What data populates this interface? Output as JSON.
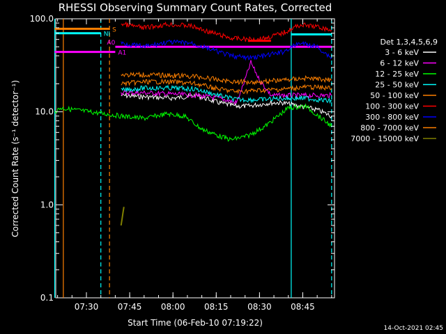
{
  "chart_data": {
    "type": "line",
    "title": "RHESSI Observing Summary Count Rates, Corrected",
    "xlabel": "Start Time (06-Feb-10 07:19:22)",
    "ylabel": "Corrected Count Rate (s⁻¹ detector⁻¹)",
    "ylim": [
      0.1,
      100.0
    ],
    "yscale": "log",
    "xrange_minutes": [
      "07:19:22",
      "08:56:00"
    ],
    "x_ticks": [
      "07:30",
      "07:45",
      "08:00",
      "08:15",
      "08:30",
      "08:45"
    ],
    "y_ticks": [
      "0.1",
      "1.0",
      "10.0",
      "100.0"
    ],
    "legend_title": "Det 1,3,4,5,6,9",
    "legend_placement": "right",
    "grid": false,
    "series": [
      {
        "name": "3 - 6 keV",
        "color": "#ffffff",
        "x": [
          "07:42",
          "07:50",
          "08:00",
          "08:08",
          "08:16",
          "08:22",
          "08:26",
          "08:30",
          "08:34",
          "08:38",
          "08:44",
          "08:50",
          "08:55"
        ],
        "values": [
          15,
          14.5,
          14,
          15,
          12.5,
          11.5,
          11.5,
          12,
          12.5,
          12.5,
          11.5,
          10.5,
          9
        ]
      },
      {
        "name": "6 - 12 keV",
        "color": "#ff00ff",
        "x": [
          "07:42",
          "07:50",
          "08:00",
          "08:08",
          "08:16",
          "08:22",
          "08:24",
          "08:27",
          "08:30",
          "08:34",
          "08:40",
          "08:46",
          "08:55"
        ],
        "values": [
          16,
          16,
          15.5,
          15,
          14,
          12.5,
          18,
          34,
          22,
          15,
          15,
          15,
          15
        ]
      },
      {
        "name": "12 - 25 keV",
        "color": "#00ff00",
        "x": [
          "07:19",
          "07:21",
          "07:42",
          "07:50",
          "07:58",
          "08:04",
          "08:10",
          "08:16",
          "08:20",
          "08:26",
          "08:32",
          "08:40",
          "08:46",
          "08:55"
        ],
        "values": [
          10,
          11,
          9,
          8.5,
          9.5,
          9,
          6.5,
          5.5,
          5,
          5.5,
          7,
          11,
          11.5,
          7
        ]
      },
      {
        "name": "25 - 50 keV",
        "color": "#00ffff",
        "x": [
          "07:42",
          "07:50",
          "08:00",
          "08:08",
          "08:16",
          "08:22",
          "08:30",
          "08:38",
          "08:46",
          "08:55"
        ],
        "values": [
          17,
          18,
          18,
          17.5,
          15,
          13.5,
          13.5,
          14,
          14,
          13
        ]
      },
      {
        "name": "50 - 100 keV",
        "color": "#ff8000",
        "x": [
          "07:42",
          "07:50",
          "08:00",
          "08:08",
          "08:16",
          "08:22",
          "08:30",
          "08:38",
          "08:46",
          "08:55"
        ],
        "values": [
          20,
          21,
          21,
          20,
          17.5,
          16.5,
          17,
          17.5,
          18.5,
          18
        ]
      },
      {
        "name": "100 - 300 keV",
        "color": "#ff0000",
        "x": [
          "07:42",
          "07:50",
          "07:58",
          "08:06",
          "08:14",
          "08:20",
          "08:26",
          "08:32",
          "08:38",
          "08:44",
          "08:50",
          "08:55"
        ],
        "values": [
          88,
          80,
          87,
          84,
          70,
          62,
          60,
          62,
          70,
          86,
          82,
          75
        ]
      },
      {
        "name": "300 - 800 keV",
        "color": "#0000ff",
        "x": [
          "07:42",
          "07:50",
          "07:58",
          "08:06",
          "08:14",
          "08:20",
          "08:26",
          "08:32",
          "08:38",
          "08:44",
          "08:50",
          "08:55"
        ],
        "values": [
          55,
          50,
          56,
          55,
          46,
          40,
          38,
          40,
          44,
          55,
          50,
          38
        ]
      },
      {
        "name": "800 - 7000 keV",
        "color": "#ff8000",
        "x": [
          "07:42",
          "07:50",
          "08:00",
          "08:08",
          "08:16",
          "08:22",
          "08:30",
          "08:38",
          "08:46",
          "08:55"
        ],
        "values": [
          25,
          25,
          24.5,
          24,
          22,
          21,
          21,
          22,
          23,
          22
        ]
      },
      {
        "name": "7000 - 15000 keV",
        "color": "#808000",
        "x": [
          "07:42",
          "07:43"
        ],
        "values": [
          0.6,
          0.95
        ]
      }
    ],
    "flags": [
      {
        "label": "S",
        "color": "#ff8000",
        "x": [
          "07:19",
          "07:38"
        ],
        "y": 78
      },
      {
        "label": "NI",
        "color": "#00ffff",
        "x": [
          "07:19",
          "07:35"
        ],
        "y": 70
      },
      {
        "label": "A0",
        "color": "#ff00ff",
        "x": [
          "07:40",
          "08:55"
        ],
        "y": 50
      },
      {
        "label": "A1",
        "color": "#ff00ff",
        "x": [
          "07:19",
          "07:40"
        ],
        "y": 44
      },
      {
        "label": "",
        "color": "#ff0000",
        "x": [
          "08:26",
          "08:34"
        ],
        "y": 58
      },
      {
        "label": "",
        "color": "#00ffff",
        "x": [
          "08:41",
          "08:55"
        ],
        "y": 68
      }
    ],
    "vertical_lines": [
      {
        "x": "07:19",
        "color": "#00ffff",
        "style": "solid"
      },
      {
        "x": "07:22",
        "color": "#ff8000",
        "style": "solid"
      },
      {
        "x": "07:35",
        "color": "#00ffff",
        "style": "dashed"
      },
      {
        "x": "07:38",
        "color": "#ff8000",
        "style": "dashed"
      },
      {
        "x": "08:41",
        "color": "#00ffff",
        "style": "solid"
      },
      {
        "x": "08:55",
        "color": "#00ffff",
        "style": "dashed"
      }
    ]
  },
  "footer": {
    "timestamp": "14-Oct-2021 02:45"
  }
}
